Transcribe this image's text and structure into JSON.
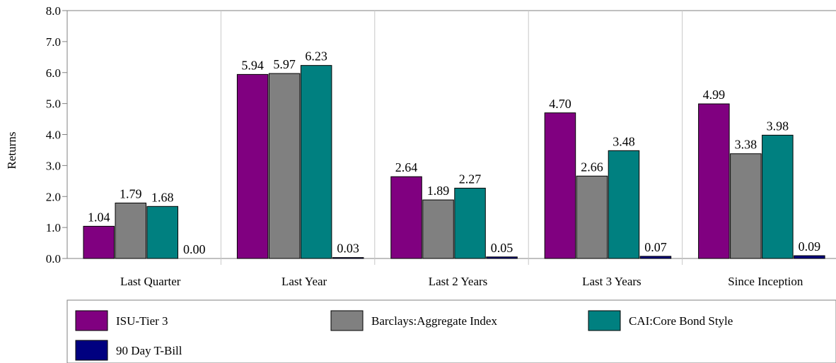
{
  "chart_data": {
    "type": "bar",
    "ylabel": "Returns",
    "xlabel": "",
    "ylim": [
      0,
      8
    ],
    "yticks": [
      "0.0",
      "1.0",
      "2.0",
      "3.0",
      "4.0",
      "5.0",
      "6.0",
      "7.0",
      "8.0"
    ],
    "categories": [
      "Last Quarter",
      "Last Year",
      "Last 2 Years",
      "Last 3 Years",
      "Since Inception"
    ],
    "series": [
      {
        "name": "ISU-Tier 3",
        "color": "#800080",
        "values": [
          1.04,
          5.94,
          2.64,
          4.7,
          4.99
        ],
        "labels": [
          "1.04",
          "5.94",
          "2.64",
          "4.70",
          "4.99"
        ]
      },
      {
        "name": "Barclays:Aggregate Index",
        "color": "#808080",
        "values": [
          1.79,
          5.97,
          1.89,
          2.66,
          3.38
        ],
        "labels": [
          "1.79",
          "5.97",
          "1.89",
          "2.66",
          "3.38"
        ]
      },
      {
        "name": "CAI:Core Bond Style",
        "color": "#008080",
        "values": [
          1.68,
          6.23,
          2.27,
          3.48,
          3.98
        ],
        "labels": [
          "1.68",
          "6.23",
          "2.27",
          "3.48",
          "3.98"
        ]
      },
      {
        "name": "90 Day T-Bill",
        "color": "#000080",
        "values": [
          0.0,
          0.03,
          0.05,
          0.07,
          0.09
        ],
        "labels": [
          "0.00",
          "0.03",
          "0.05",
          "0.07",
          "0.09"
        ]
      }
    ],
    "legend": "bottom",
    "grid": "vertical category separators"
  }
}
